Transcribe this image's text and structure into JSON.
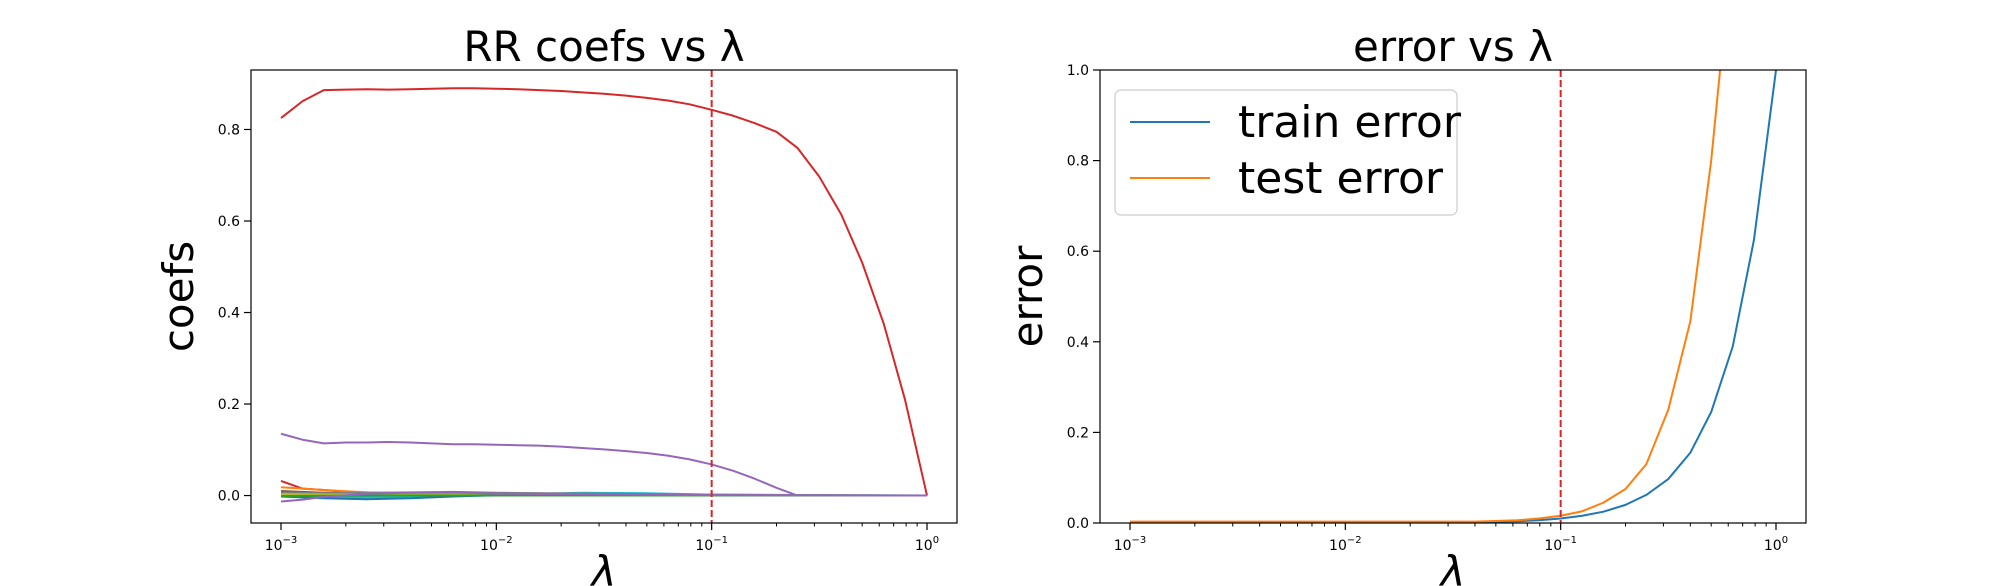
{
  "chart_data": [
    {
      "type": "line",
      "title": "RR coefs vs λ",
      "xlabel": "λ",
      "ylabel": "coefs",
      "xscale": "log",
      "xlim": [
        0.001,
        1
      ],
      "ylim": [
        -0.06,
        0.93
      ],
      "xticks": [
        0.001,
        0.01,
        0.1,
        1
      ],
      "xtick_labels": [
        {
          "base": "10",
          "exp": "−3"
        },
        {
          "base": "10",
          "exp": "−2"
        },
        {
          "base": "10",
          "exp": "−1"
        },
        {
          "base": "10",
          "exp": "0"
        }
      ],
      "yticks": [
        "0.0",
        "0.2",
        "0.4",
        "0.6",
        "0.8"
      ],
      "grid": false,
      "vline": {
        "x": 0.1,
        "color": "#d62728",
        "style": "dashed"
      },
      "series": [
        {
          "color": "#d62728",
          "x": [
            0.001,
            0.00126,
            0.00158,
            0.002,
            0.0025,
            0.00316,
            0.004,
            0.005,
            0.0063,
            0.0079,
            0.01,
            0.0126,
            0.0158,
            0.02,
            0.025,
            0.0316,
            0.04,
            0.05,
            0.063,
            0.079,
            0.1,
            0.126,
            0.158,
            0.2,
            0.25,
            0.316,
            0.4,
            0.5,
            0.63,
            0.79,
            1.0
          ],
          "y": [
            0.825,
            0.862,
            0.886,
            0.887,
            0.888,
            0.887,
            0.888,
            0.889,
            0.89,
            0.89,
            0.889,
            0.888,
            0.886,
            0.884,
            0.881,
            0.878,
            0.874,
            0.869,
            0.863,
            0.855,
            0.843,
            0.83,
            0.814,
            0.795,
            0.76,
            0.697,
            0.614,
            0.509,
            0.375,
            0.21,
            0.0
          ]
        },
        {
          "color": "#9467bd",
          "x": [
            0.001,
            0.00126,
            0.00158,
            0.002,
            0.0025,
            0.00316,
            0.004,
            0.005,
            0.0063,
            0.0079,
            0.01,
            0.0126,
            0.0158,
            0.02,
            0.025,
            0.0316,
            0.04,
            0.05,
            0.063,
            0.079,
            0.1,
            0.126,
            0.158,
            0.2,
            0.25,
            0.316,
            0.4,
            0.5,
            0.63,
            0.79,
            1.0
          ],
          "y": [
            0.135,
            0.122,
            0.114,
            0.116,
            0.116,
            0.117,
            0.116,
            0.114,
            0.112,
            0.112,
            0.111,
            0.11,
            0.109,
            0.107,
            0.104,
            0.101,
            0.097,
            0.093,
            0.087,
            0.079,
            0.068,
            0.054,
            0.037,
            0.017,
            0.0,
            0.0,
            0.0,
            0.0,
            0.0,
            0.0,
            0.0
          ]
        },
        {
          "color": "#d62728",
          "x": [
            0.001,
            0.00126,
            0.00158,
            0.002,
            0.0025,
            0.004,
            0.01,
            0.1,
            1.0
          ],
          "y": [
            0.032,
            0.015,
            0.012,
            0.008,
            0.004,
            0.002,
            0.001,
            0.0,
            0.0
          ]
        },
        {
          "color": "#ff7f0e",
          "x": [
            0.001,
            0.00158,
            0.0025,
            0.004,
            0.01,
            0.1,
            1.0
          ],
          "y": [
            0.018,
            0.012,
            0.007,
            0.004,
            0.002,
            0.0,
            0.0
          ]
        },
        {
          "color": "#8c564b",
          "x": [
            0.001,
            0.00158,
            0.0025,
            0.004,
            0.01,
            0.1,
            1.0
          ],
          "y": [
            0.01,
            0.006,
            0.004,
            0.002,
            0.001,
            0.0,
            0.0
          ]
        },
        {
          "color": "#17becf",
          "x": [
            0.001,
            0.00158,
            0.0025,
            0.004,
            0.01,
            0.0158,
            0.025,
            0.05,
            0.1,
            1.0
          ],
          "y": [
            0.0,
            -0.004,
            -0.004,
            -0.002,
            0.0,
            0.004,
            0.006,
            0.005,
            0.002,
            0.0
          ]
        },
        {
          "color": "#1f77b4",
          "x": [
            0.001,
            0.00158,
            0.0025,
            0.004,
            0.0063,
            0.01,
            0.0158,
            0.05,
            0.1,
            1.0
          ],
          "y": [
            -0.002,
            -0.006,
            -0.008,
            -0.006,
            -0.002,
            0.001,
            0.002,
            0.001,
            0.0,
            0.0
          ]
        },
        {
          "color": "#e377c2",
          "x": [
            0.001,
            0.0025,
            0.01,
            0.1,
            1.0
          ],
          "y": [
            0.004,
            0.003,
            0.002,
            0.001,
            0.0
          ]
        },
        {
          "color": "#7f7f7f",
          "x": [
            0.001,
            0.00158,
            0.0025,
            0.004,
            0.0063,
            0.01,
            0.1,
            1.0
          ],
          "y": [
            0.006,
            0.005,
            0.006,
            0.007,
            0.008,
            0.006,
            0.002,
            0.0
          ]
        },
        {
          "color": "#bcbd22",
          "x": [
            0.001,
            0.0025,
            0.01,
            0.1,
            1.0
          ],
          "y": [
            0.003,
            0.002,
            0.001,
            0.0,
            0.0
          ]
        },
        {
          "color": "#2ca02c",
          "x": [
            0.001,
            0.0025,
            0.01,
            0.1,
            1.0
          ],
          "y": [
            -0.001,
            0.0,
            0.0,
            0.0,
            0.0
          ]
        },
        {
          "color": "#9467bd",
          "x": [
            0.001,
            0.00126,
            0.00158,
            0.0025,
            0.004,
            0.0063,
            0.01,
            0.1,
            1.0
          ],
          "y": [
            -0.013,
            -0.009,
            -0.003,
            0.004,
            0.006,
            0.007,
            0.004,
            0.001,
            0.0
          ]
        }
      ]
    },
    {
      "type": "line",
      "title": "error vs λ",
      "xlabel": "λ",
      "ylabel": "error",
      "xscale": "log",
      "xlim": [
        0.001,
        1
      ],
      "ylim": [
        0,
        1
      ],
      "xticks": [
        0.001,
        0.01,
        0.1,
        1
      ],
      "xtick_labels": [
        {
          "base": "10",
          "exp": "−3"
        },
        {
          "base": "10",
          "exp": "−2"
        },
        {
          "base": "10",
          "exp": "−1"
        },
        {
          "base": "10",
          "exp": "0"
        }
      ],
      "yticks": [
        "0.0",
        "0.2",
        "0.4",
        "0.6",
        "0.8",
        "1.0"
      ],
      "grid": false,
      "legend_position": "top-left",
      "vline": {
        "x": 0.1,
        "color": "#d62728",
        "style": "dashed"
      },
      "series": [
        {
          "name": "train error",
          "color": "#1f77b4",
          "x": [
            0.001,
            0.00158,
            0.0025,
            0.004,
            0.0063,
            0.01,
            0.0158,
            0.025,
            0.04,
            0.063,
            0.079,
            0.1,
            0.126,
            0.158,
            0.2,
            0.25,
            0.316,
            0.4,
            0.5,
            0.63,
            0.79,
            1.0
          ],
          "y": [
            0.002,
            0.002,
            0.002,
            0.002,
            0.002,
            0.002,
            0.002,
            0.002,
            0.002,
            0.004,
            0.006,
            0.01,
            0.016,
            0.025,
            0.04,
            0.062,
            0.097,
            0.155,
            0.245,
            0.39,
            0.625,
            1.0
          ]
        },
        {
          "name": "test error",
          "color": "#ff7f0e",
          "x": [
            0.001,
            0.00158,
            0.0025,
            0.004,
            0.0063,
            0.01,
            0.0158,
            0.025,
            0.04,
            0.063,
            0.079,
            0.1,
            0.126,
            0.158,
            0.2,
            0.25,
            0.316,
            0.4,
            0.5,
            0.55
          ],
          "y": [
            0.003,
            0.003,
            0.003,
            0.003,
            0.003,
            0.003,
            0.003,
            0.003,
            0.003,
            0.006,
            0.01,
            0.016,
            0.026,
            0.045,
            0.075,
            0.13,
            0.25,
            0.445,
            0.8,
            1.0
          ]
        }
      ]
    }
  ]
}
